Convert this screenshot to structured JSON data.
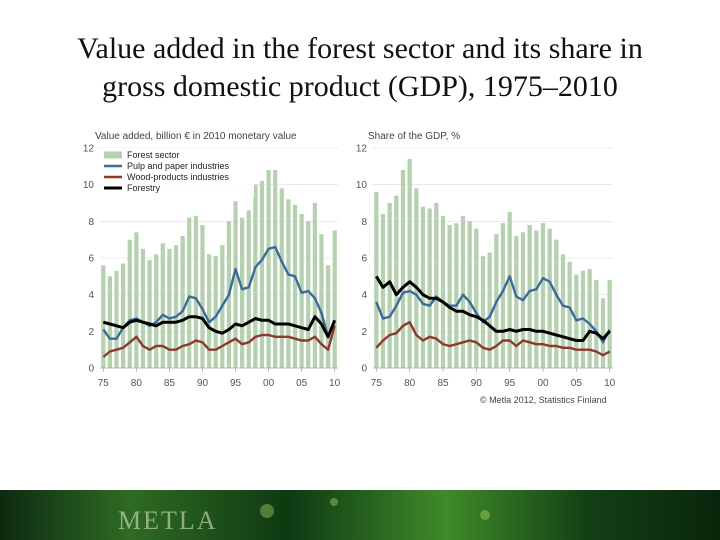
{
  "title_line1": "Value added in the forest sector and its share in",
  "title_line2": "gross domestic product (GDP), 1975–2010",
  "source": "© Metla 2012, Statistics Finland",
  "footer_logo": "METLA",
  "colors": {
    "bar": "#b5d1b0",
    "pulp": "#3e6a9a",
    "wood": "#8b3a2e",
    "forestry": "#000000",
    "grid": "#dddddd",
    "axis": "#aaaaaa"
  },
  "chart_data": [
    {
      "type": "bar",
      "ylabel": "Value added, billion € in 2010 monetary value",
      "x": [
        1975,
        1976,
        1977,
        1978,
        1979,
        1980,
        1981,
        1982,
        1983,
        1984,
        1985,
        1986,
        1987,
        1988,
        1989,
        1990,
        1991,
        1992,
        1993,
        1994,
        1995,
        1996,
        1997,
        1998,
        1999,
        2000,
        2001,
        2002,
        2003,
        2004,
        2005,
        2006,
        2007,
        2008,
        2009,
        2010
      ],
      "xticks": [
        "75",
        "80",
        "85",
        "90",
        "95",
        "00",
        "05",
        "10"
      ],
      "ylim": [
        0,
        12
      ],
      "yticks": [
        0,
        2,
        4,
        6,
        8,
        10,
        12
      ],
      "legend": [
        "Forest sector",
        "Pulp and paper industries",
        "Wood-products industries",
        "Forestry"
      ],
      "legend_position": "top-left",
      "series": [
        {
          "name": "Forest sector",
          "type": "bar",
          "values": [
            5.6,
            5.0,
            5.3,
            5.7,
            7.0,
            7.4,
            6.5,
            5.9,
            6.2,
            6.8,
            6.5,
            6.7,
            7.2,
            8.2,
            8.3,
            7.8,
            6.2,
            6.1,
            6.7,
            8.0,
            9.1,
            8.2,
            8.6,
            10.0,
            10.2,
            10.8,
            10.8,
            9.8,
            9.2,
            8.9,
            8.4,
            8.0,
            9.0,
            7.3,
            5.6,
            7.5
          ]
        },
        {
          "name": "Pulp and paper industries",
          "type": "line",
          "values": [
            2.1,
            1.6,
            1.6,
            2.2,
            2.6,
            2.7,
            2.5,
            2.3,
            2.5,
            2.9,
            2.7,
            2.8,
            3.1,
            3.9,
            3.8,
            3.2,
            2.5,
            2.8,
            3.4,
            4.0,
            5.4,
            4.3,
            4.4,
            5.5,
            5.9,
            6.5,
            6.6,
            5.8,
            5.1,
            5.0,
            4.1,
            4.2,
            3.8,
            3.0,
            1.7,
            2.6
          ]
        },
        {
          "name": "Wood-products industries",
          "type": "line",
          "values": [
            0.6,
            0.9,
            1.0,
            1.1,
            1.4,
            1.7,
            1.2,
            1.0,
            1.2,
            1.2,
            1.0,
            1.0,
            1.2,
            1.3,
            1.5,
            1.4,
            1.0,
            1.0,
            1.2,
            1.4,
            1.6,
            1.3,
            1.4,
            1.7,
            1.8,
            1.8,
            1.7,
            1.7,
            1.7,
            1.6,
            1.5,
            1.5,
            1.7,
            1.3,
            1.0,
            2.3
          ]
        },
        {
          "name": "Forestry",
          "type": "line",
          "values": [
            2.5,
            2.4,
            2.3,
            2.2,
            2.5,
            2.6,
            2.5,
            2.4,
            2.3,
            2.5,
            2.5,
            2.5,
            2.6,
            2.8,
            2.8,
            2.7,
            2.2,
            2.0,
            1.9,
            2.1,
            2.4,
            2.3,
            2.5,
            2.7,
            2.6,
            2.6,
            2.4,
            2.4,
            2.4,
            2.3,
            2.2,
            2.1,
            2.8,
            2.4,
            1.7,
            2.6
          ]
        }
      ]
    },
    {
      "type": "bar",
      "ylabel": "Share of the GDP, %",
      "x": [
        1975,
        1976,
        1977,
        1978,
        1979,
        1980,
        1981,
        1982,
        1983,
        1984,
        1985,
        1986,
        1987,
        1988,
        1989,
        1990,
        1991,
        1992,
        1993,
        1994,
        1995,
        1996,
        1997,
        1998,
        1999,
        2000,
        2001,
        2002,
        2003,
        2004,
        2005,
        2006,
        2007,
        2008,
        2009,
        2010
      ],
      "xticks": [
        "75",
        "80",
        "85",
        "90",
        "95",
        "00",
        "05",
        "10"
      ],
      "ylim": [
        0,
        12
      ],
      "yticks": [
        0,
        2,
        4,
        6,
        8,
        10,
        12
      ],
      "series": [
        {
          "name": "Forest sector",
          "type": "bar",
          "values": [
            9.6,
            8.4,
            9.0,
            9.4,
            10.8,
            11.4,
            9.8,
            8.8,
            8.7,
            9.0,
            8.3,
            7.8,
            7.9,
            8.3,
            8.0,
            7.6,
            6.1,
            6.3,
            7.3,
            7.9,
            8.5,
            7.2,
            7.4,
            7.8,
            7.5,
            7.9,
            7.6,
            7.0,
            6.2,
            5.8,
            5.1,
            5.3,
            5.4,
            4.8,
            3.8,
            4.8
          ]
        },
        {
          "name": "Pulp and paper industries",
          "type": "line",
          "values": [
            3.6,
            2.7,
            2.8,
            3.4,
            4.1,
            4.2,
            4.0,
            3.5,
            3.4,
            3.9,
            3.6,
            3.4,
            3.4,
            4.0,
            3.6,
            3.0,
            2.5,
            2.8,
            3.6,
            4.2,
            5.0,
            3.9,
            3.7,
            4.2,
            4.3,
            4.9,
            4.7,
            4.0,
            3.4,
            3.3,
            2.6,
            2.7,
            2.4,
            2.0,
            1.4,
            2.1
          ]
        },
        {
          "name": "Wood-products industries",
          "type": "line",
          "values": [
            1.1,
            1.5,
            1.8,
            1.9,
            2.3,
            2.5,
            1.8,
            1.5,
            1.7,
            1.6,
            1.3,
            1.2,
            1.3,
            1.4,
            1.5,
            1.4,
            1.1,
            1.0,
            1.2,
            1.5,
            1.5,
            1.2,
            1.5,
            1.4,
            1.3,
            1.3,
            1.2,
            1.2,
            1.1,
            1.1,
            1.0,
            1.0,
            1.0,
            0.9,
            0.7,
            0.9
          ]
        },
        {
          "name": "Forestry",
          "type": "line",
          "values": [
            5.0,
            4.4,
            4.7,
            4.0,
            4.4,
            4.7,
            4.4,
            4.0,
            3.8,
            3.8,
            3.6,
            3.3,
            3.1,
            3.1,
            2.9,
            2.8,
            2.6,
            2.3,
            2.0,
            2.0,
            2.1,
            2.0,
            2.1,
            2.1,
            2.0,
            2.0,
            1.9,
            1.8,
            1.7,
            1.6,
            1.5,
            1.5,
            2.0,
            1.9,
            1.6,
            2.0
          ]
        }
      ]
    }
  ]
}
